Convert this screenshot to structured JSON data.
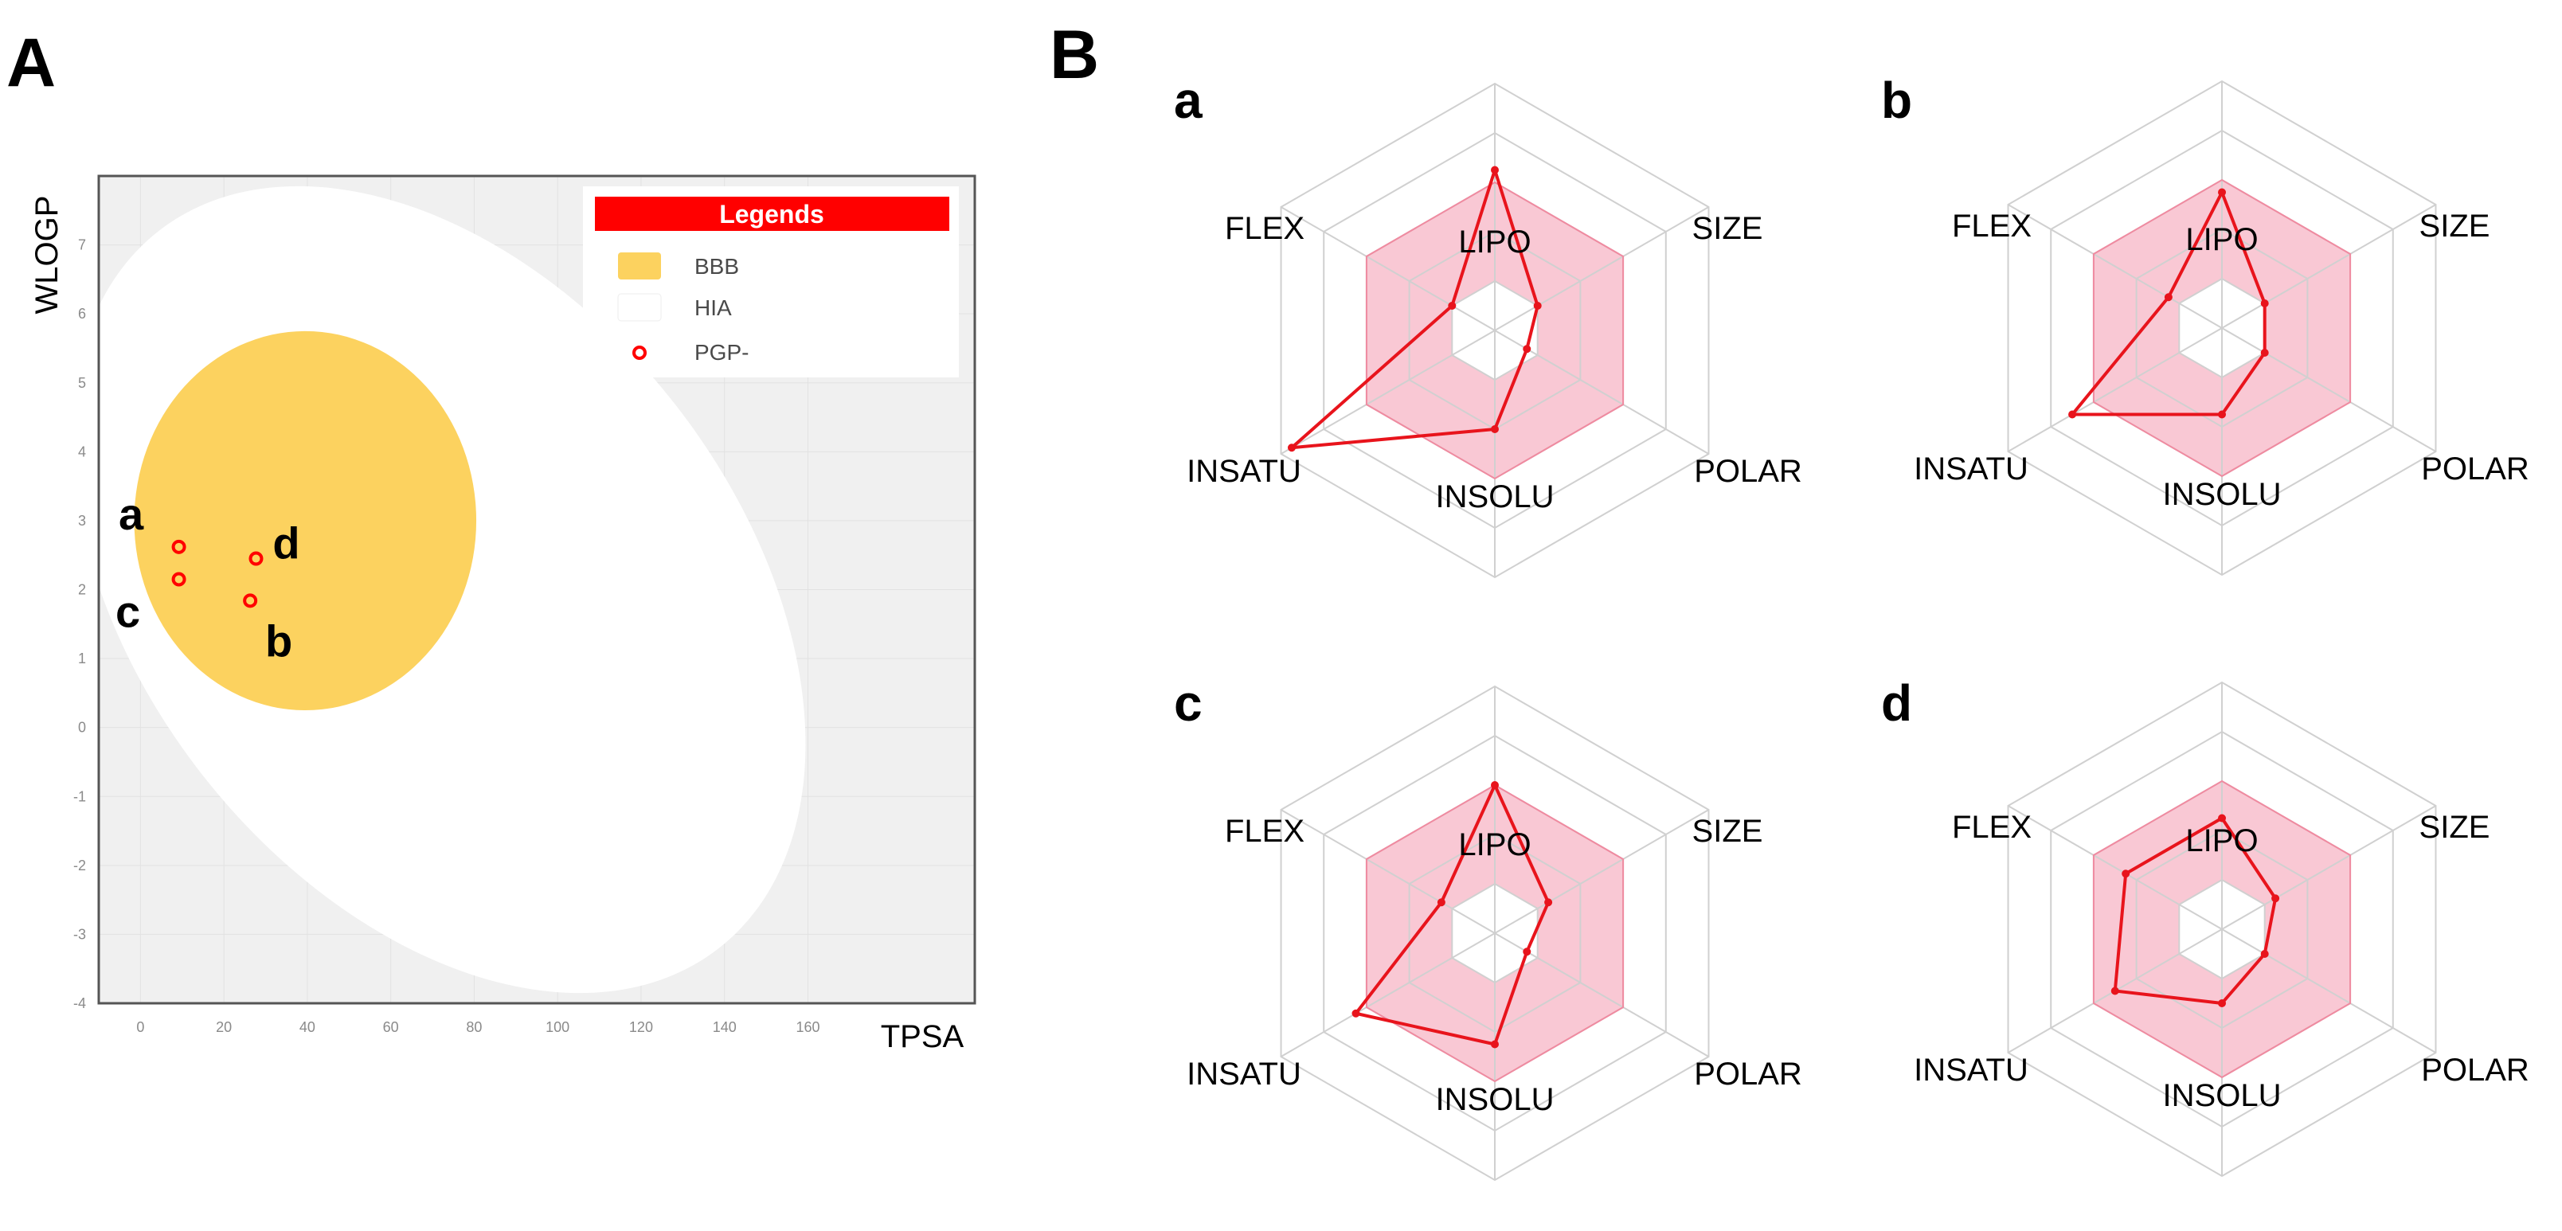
{
  "panels": {
    "A": "A",
    "B": "B"
  },
  "chart_data": [
    {
      "type": "scatter",
      "title": "",
      "xlabel": "TPSA",
      "ylabel": "WLOGP",
      "xlim": [
        -10,
        200
      ],
      "ylim": [
        -4,
        8
      ],
      "xticks": [
        "0",
        "20",
        "40",
        "60",
        "80",
        "100",
        "120",
        "140",
        "160"
      ],
      "yticks": [
        "7",
        "6",
        "5",
        "4",
        "3",
        "2",
        "1",
        "0",
        "-1",
        "-2",
        "-3",
        "-4"
      ],
      "legend": {
        "title": "Legends",
        "items": [
          {
            "label": "BBB",
            "color": "#fcd25f"
          },
          {
            "label": "HIA",
            "color": "#ffffff"
          },
          {
            "label": "PGP-",
            "color": "#ff0000"
          }
        ]
      },
      "regions": [
        {
          "name": "HIA",
          "cx": 71.5,
          "cy": 2.0,
          "rx": 72,
          "ry": 6.6,
          "rotate_deg": -38,
          "color": "#ffffff"
        },
        {
          "name": "BBB",
          "cx": 39.5,
          "cy": 3.0,
          "rx": 41,
          "ry": 2.75,
          "rotate_deg": 0,
          "color": "#fcd25f"
        }
      ],
      "points": [
        {
          "label": "a",
          "x": 9.2,
          "y": 2.62,
          "class": "PGP-"
        },
        {
          "label": "b",
          "x": 26.3,
          "y": 1.84,
          "class": "PGP-"
        },
        {
          "label": "c",
          "x": 9.2,
          "y": 2.15,
          "class": "PGP-"
        },
        {
          "label": "d",
          "x": 27.7,
          "y": 2.45,
          "class": "PGP-"
        }
      ],
      "background_color": "#f0f0f0"
    },
    {
      "type": "radar",
      "axes": [
        "LIPO",
        "SIZE",
        "POLAR",
        "INSOLU",
        "INSATU",
        "FLEX"
      ],
      "optimal_range": {
        "inner": 0.2,
        "outer": 0.6
      },
      "charts": [
        {
          "label": "a",
          "values": [
            0.65,
            0.2,
            0.15,
            0.4,
            0.95,
            0.2
          ]
        },
        {
          "label": "b",
          "values": [
            0.55,
            0.2,
            0.2,
            0.35,
            0.7,
            0.25
          ]
        },
        {
          "label": "c",
          "values": [
            0.6,
            0.25,
            0.15,
            0.45,
            0.65,
            0.25
          ]
        },
        {
          "label": "d",
          "values": [
            0.45,
            0.25,
            0.2,
            0.3,
            0.5,
            0.45
          ]
        }
      ],
      "line_color": "#e8141c",
      "fill_color": "#f9c8d4"
    }
  ]
}
